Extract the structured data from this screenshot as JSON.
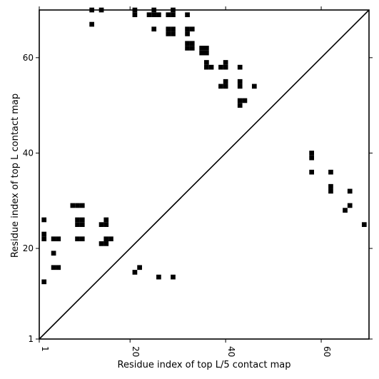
{
  "chart_data": {
    "type": "heatmap",
    "title": "",
    "xlabel": "Residue index of top L/5 contact map",
    "ylabel": "Residue index of top L contact map",
    "xlim": [
      1,
      70
    ],
    "ylim": [
      1,
      70
    ],
    "x_ticks": [
      1,
      20,
      40,
      60
    ],
    "y_ticks": [
      1,
      20,
      40,
      60
    ],
    "grid": false,
    "diagonal": true,
    "cell_color": "#000000",
    "upper_contacts": [
      [
        12,
        70
      ],
      [
        12,
        67
      ],
      [
        14,
        70
      ],
      [
        21,
        70
      ],
      [
        21,
        69
      ],
      [
        24,
        69
      ],
      [
        25,
        70
      ],
      [
        25,
        69
      ],
      [
        26,
        69
      ],
      [
        28,
        69
      ],
      [
        29,
        70
      ],
      [
        29,
        69
      ],
      [
        32,
        69
      ],
      [
        25,
        66
      ],
      [
        28,
        66
      ],
      [
        28,
        65
      ],
      [
        29,
        66
      ],
      [
        29,
        65
      ],
      [
        32,
        66
      ],
      [
        32,
        65
      ],
      [
        33,
        66
      ],
      [
        32,
        63
      ],
      [
        32,
        62
      ],
      [
        33,
        63
      ],
      [
        33,
        62
      ],
      [
        35,
        62
      ],
      [
        35,
        61
      ],
      [
        36,
        62
      ],
      [
        36,
        61
      ],
      [
        36,
        59
      ],
      [
        36,
        58
      ],
      [
        37,
        58
      ],
      [
        39,
        58
      ],
      [
        40,
        59
      ],
      [
        40,
        58
      ],
      [
        43,
        58
      ],
      [
        39,
        54
      ],
      [
        40,
        55
      ],
      [
        40,
        54
      ],
      [
        43,
        55
      ],
      [
        43,
        54
      ],
      [
        46,
        54
      ],
      [
        43,
        51
      ],
      [
        43,
        50
      ],
      [
        44,
        51
      ]
    ],
    "lower_contacts": [
      [
        58,
        40
      ],
      [
        58,
        39
      ],
      [
        58,
        36
      ],
      [
        62,
        36
      ],
      [
        62,
        33
      ],
      [
        62,
        32
      ],
      [
        66,
        32
      ],
      [
        66,
        29
      ],
      [
        65,
        28
      ],
      [
        69,
        25
      ],
      [
        2,
        26
      ],
      [
        2,
        23
      ],
      [
        2,
        22
      ],
      [
        4,
        22
      ],
      [
        5,
        22
      ],
      [
        8,
        29
      ],
      [
        9,
        29
      ],
      [
        10,
        29
      ],
      [
        9,
        26
      ],
      [
        10,
        26
      ],
      [
        9,
        25
      ],
      [
        10,
        25
      ],
      [
        9,
        22
      ],
      [
        10,
        22
      ],
      [
        14,
        25
      ],
      [
        15,
        26
      ],
      [
        15,
        25
      ],
      [
        15,
        22
      ],
      [
        16,
        22
      ],
      [
        14,
        21
      ],
      [
        15,
        21
      ],
      [
        4,
        19
      ],
      [
        4,
        16
      ],
      [
        5,
        16
      ],
      [
        21,
        15
      ],
      [
        22,
        16
      ],
      [
        2,
        13
      ],
      [
        26,
        14
      ],
      [
        29,
        14
      ]
    ]
  }
}
